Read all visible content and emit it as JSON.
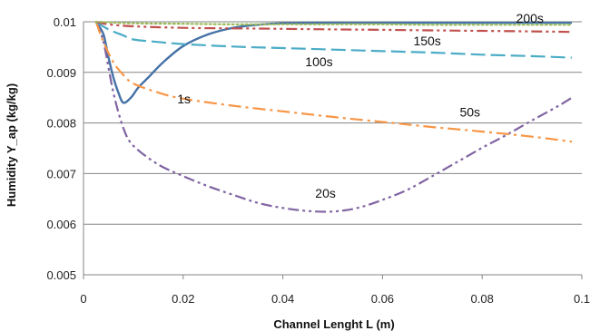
{
  "chart_data": {
    "type": "line",
    "xlabel": "Channel Lenght L (m)",
    "ylabel": "Humidity Y_ap (kg/kg)",
    "xlim": [
      0,
      0.1
    ],
    "ylim": [
      0.005,
      0.01
    ],
    "xticks": [
      "0",
      "0.02",
      "0.04",
      "0.06",
      "0.08",
      "0.1"
    ],
    "xtick_values": [
      0,
      0.02,
      0.04,
      0.06,
      0.08,
      0.1
    ],
    "yticks": [
      "0.005",
      "0.006",
      "0.007",
      "0.008",
      "0.009",
      "0.01"
    ],
    "ytick_values": [
      0.005,
      0.006,
      0.007,
      0.008,
      0.009,
      0.01
    ],
    "grid": "horizontal",
    "legend": "none",
    "series": [
      {
        "name": "1s",
        "color": "#4572a7",
        "dash": "solid",
        "label_at": [
          0.0188,
          0.00839
        ],
        "points": [
          [
            0.0025,
            0.01
          ],
          [
            0.004,
            0.00975
          ],
          [
            0.005,
            0.0093
          ],
          [
            0.006,
            0.0089
          ],
          [
            0.007,
            0.0086
          ],
          [
            0.008,
            0.0084
          ],
          [
            0.0095,
            0.0085
          ],
          [
            0.011,
            0.0087
          ],
          [
            0.013,
            0.0089
          ],
          [
            0.016,
            0.0092
          ],
          [
            0.02,
            0.00952
          ],
          [
            0.025,
            0.00975
          ],
          [
            0.03,
            0.00988
          ],
          [
            0.035,
            0.00994
          ],
          [
            0.04,
            0.00997
          ],
          [
            0.05,
            0.00998
          ],
          [
            0.06,
            0.00998
          ],
          [
            0.07,
            0.00998
          ],
          [
            0.08,
            0.00998
          ],
          [
            0.09,
            0.00998
          ],
          [
            0.098,
            0.00998
          ]
        ]
      },
      {
        "name": "20s",
        "color": "#8064a2",
        "dash": "dashdotdot",
        "label_at": [
          0.0465,
          0.00652
        ],
        "points": [
          [
            0.0025,
            0.01
          ],
          [
            0.004,
            0.0096
          ],
          [
            0.006,
            0.0086
          ],
          [
            0.008,
            0.0079
          ],
          [
            0.01,
            0.00755
          ],
          [
            0.015,
            0.00718
          ],
          [
            0.02,
            0.00695
          ],
          [
            0.025,
            0.00675
          ],
          [
            0.03,
            0.00658
          ],
          [
            0.035,
            0.00642
          ],
          [
            0.04,
            0.00632
          ],
          [
            0.045,
            0.00626
          ],
          [
            0.05,
            0.00625
          ],
          [
            0.055,
            0.00632
          ],
          [
            0.06,
            0.00648
          ],
          [
            0.065,
            0.00668
          ],
          [
            0.07,
            0.00695
          ],
          [
            0.075,
            0.00723
          ],
          [
            0.08,
            0.00751
          ],
          [
            0.085,
            0.00777
          ],
          [
            0.09,
            0.00805
          ],
          [
            0.095,
            0.00832
          ],
          [
            0.098,
            0.0085
          ]
        ]
      },
      {
        "name": "50s",
        "color": "#f79646",
        "dash": "dashdot",
        "label_at": [
          0.0755,
          0.00813
        ],
        "points": [
          [
            0.0025,
            0.01
          ],
          [
            0.004,
            0.0096
          ],
          [
            0.006,
            0.0092
          ],
          [
            0.008,
            0.00895
          ],
          [
            0.01,
            0.00878
          ],
          [
            0.015,
            0.0086
          ],
          [
            0.02,
            0.00848
          ],
          [
            0.03,
            0.00834
          ],
          [
            0.04,
            0.00823
          ],
          [
            0.05,
            0.00812
          ],
          [
            0.06,
            0.00802
          ],
          [
            0.07,
            0.00792
          ],
          [
            0.08,
            0.00783
          ],
          [
            0.09,
            0.00773
          ],
          [
            0.098,
            0.00763
          ]
        ]
      },
      {
        "name": "100s",
        "color": "#4bacc6",
        "dash": "longdash",
        "label_at": [
          0.0445,
          0.00912
        ],
        "points": [
          [
            0.0025,
            0.01
          ],
          [
            0.005,
            0.00985
          ],
          [
            0.008,
            0.00973
          ],
          [
            0.01,
            0.00965
          ],
          [
            0.015,
            0.0096
          ],
          [
            0.02,
            0.00956
          ],
          [
            0.03,
            0.00951
          ],
          [
            0.04,
            0.00948
          ],
          [
            0.05,
            0.00945
          ],
          [
            0.06,
            0.00942
          ],
          [
            0.07,
            0.00939
          ],
          [
            0.08,
            0.00935
          ],
          [
            0.09,
            0.00932
          ],
          [
            0.098,
            0.00929
          ]
        ]
      },
      {
        "name": "150s",
        "color": "#c0504d",
        "dash": "dashdotdot",
        "label_at": [
          0.0662,
          0.00953
        ],
        "points": [
          [
            0.0025,
            0.01
          ],
          [
            0.005,
            0.00995
          ],
          [
            0.01,
            0.00991
          ],
          [
            0.02,
            0.00988
          ],
          [
            0.03,
            0.00987
          ],
          [
            0.04,
            0.00986
          ],
          [
            0.05,
            0.00985
          ],
          [
            0.06,
            0.00984
          ],
          [
            0.07,
            0.00983
          ],
          [
            0.08,
            0.00982
          ],
          [
            0.09,
            0.00981
          ],
          [
            0.098,
            0.0098
          ]
        ]
      },
      {
        "name": "200s",
        "color": "#9bbb59",
        "dash": "dotted",
        "label_at": [
          0.0868,
          0.00998
        ],
        "points": [
          [
            0.0025,
            0.01
          ],
          [
            0.01,
            0.00997
          ],
          [
            0.02,
            0.00996
          ],
          [
            0.03,
            0.00995
          ],
          [
            0.04,
            0.00995
          ],
          [
            0.05,
            0.00995
          ],
          [
            0.06,
            0.00995
          ],
          [
            0.07,
            0.00994
          ],
          [
            0.08,
            0.00994
          ],
          [
            0.09,
            0.00994
          ],
          [
            0.098,
            0.00994
          ]
        ]
      }
    ]
  }
}
